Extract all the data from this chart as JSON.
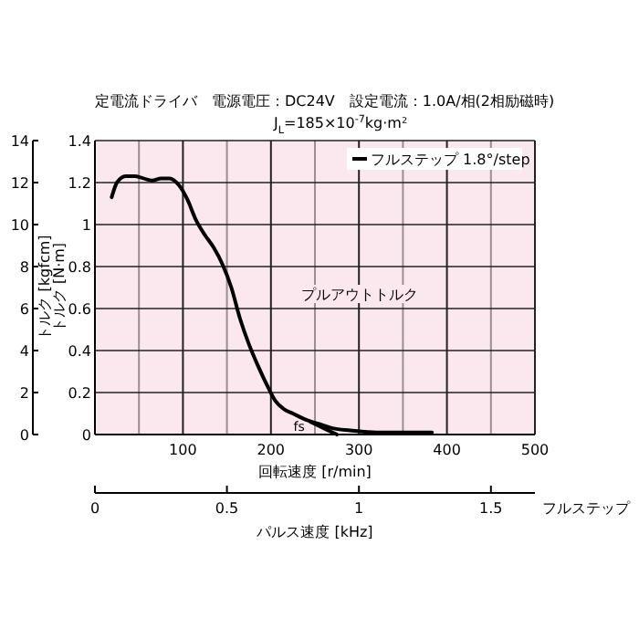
{
  "chart_data": {
    "type": "line",
    "title": "定電流ドライバ　電源電圧：DC24V　設定電流：1.0A/相(2相励磁時)",
    "subtitle": "J$_{L}$=185×10$^{-7}$kg·m²",
    "xlabel": "回転速度 [r/min]",
    "ylabel": "トルク [N·m]",
    "y2label": "トルク [kgfcm]",
    "x2label": "パルス速度 [kHz]",
    "xlim": [
      0,
      500
    ],
    "xticks": [
      {
        "value": 50,
        "label": null
      },
      100,
      {
        "value": 150,
        "label": null
      },
      200,
      {
        "value": 250,
        "label": null
      },
      300,
      {
        "value": 350,
        "label": null
      },
      400,
      {
        "value": 450,
        "label": null
      },
      500
    ],
    "ylim": [
      0,
      1.4
    ],
    "yticks": [
      0,
      0.2,
      0.4,
      0.6,
      0.8,
      1.0,
      1.2,
      1.4
    ],
    "y2lim": [
      0,
      14
    ],
    "y2ticks": [
      0,
      2,
      4,
      6,
      8,
      10,
      12,
      14
    ],
    "x2lim": [
      0,
      1.6667
    ],
    "x2ticks": [
      0,
      0.5,
      1,
      1.5
    ],
    "grid": true,
    "legend": "top right",
    "line_style": "solid",
    "series": [
      {
        "name": "フルステップ 1.8°/step",
        "color": "#000000",
        "x": [
          19,
          25,
          35,
          45,
          55,
          65,
          75,
          85,
          95,
          105,
          115,
          125,
          135,
          145,
          155,
          165,
          175,
          185,
          195,
          205,
          215,
          225,
          240,
          255,
          270,
          290,
          320,
          350,
          383
        ],
        "values": [
          1.13,
          1.2,
          1.23,
          1.23,
          1.22,
          1.21,
          1.22,
          1.22,
          1.19,
          1.12,
          1.02,
          0.95,
          0.89,
          0.81,
          0.7,
          0.55,
          0.43,
          0.33,
          0.24,
          0.16,
          0.12,
          0.1,
          0.07,
          0.05,
          0.03,
          0.02,
          0.01,
          0.01,
          0.01
        ]
      },
      {
        "color": "#000000",
        "x": [
          245,
          255,
          265,
          275
        ],
        "values": [
          0.06,
          0.04,
          0.02,
          0
        ]
      }
    ],
    "annotations": [
      "プルアウトトルク",
      "fs",
      "フルステップ"
    ]
  }
}
